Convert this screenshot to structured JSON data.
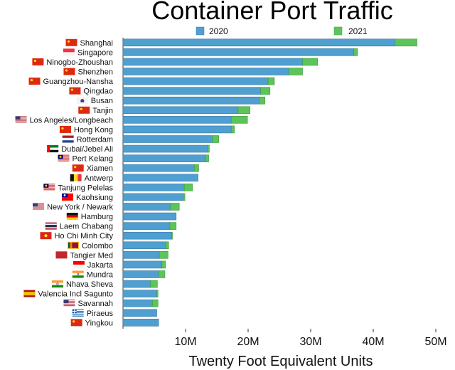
{
  "chart_data": {
    "type": "bar",
    "orientation": "horizontal",
    "stacked": true,
    "title": "Container Port Traffic",
    "xlabel": "Twenty Foot Equivalent Units",
    "ylabel": "",
    "xlim": [
      0,
      50000000
    ],
    "xticks": [
      10000000,
      20000000,
      30000000,
      40000000,
      50000000
    ],
    "xtick_labels": [
      "10M",
      "20M",
      "30M",
      "40M",
      "50M"
    ],
    "grid": false,
    "legend_position": "top",
    "categories": [
      "Shanghai",
      "Singapore",
      "Ninogbo-Zhoushan",
      "Shenzhen",
      "Guangzhou-Nansha",
      "Qingdao",
      "Busan",
      "Tanjin",
      "Los Angeles/Longbeach",
      "Hong Kong",
      "Rotterdam",
      "Dubai/Jebel Ali",
      "Pert Kelang",
      "Xiamen",
      "Antwerp",
      "Tanjung Pelelas",
      "Kaohsiung",
      "New York / Newark",
      "Hamburg",
      "Laem Chabang",
      "Ho Chi Minh City",
      "Colombo",
      "Tangier Med",
      "Jakarta",
      "Mundra",
      "Nhava Sheva",
      "Valencia Incl Sagunto",
      "Savannah",
      "Piraeus",
      "Yingkou"
    ],
    "series": [
      {
        "name": "2020",
        "color": "#4f9fd0",
        "values": [
          43500000,
          36900000,
          28700000,
          26500000,
          23200000,
          22000000,
          21800000,
          18400000,
          17300000,
          17300000,
          14300000,
          13500000,
          13200000,
          11400000,
          12000000,
          9800000,
          9600000,
          7600000,
          8500000,
          7500000,
          7800000,
          6800000,
          5800000,
          6200000,
          5700000,
          4400000,
          5400000,
          4700000,
          5400000,
          5700000
        ]
      },
      {
        "name": "2021",
        "color": "#5dc45a",
        "values": [
          3500000,
          600000,
          2400000,
          2200000,
          1000000,
          1500000,
          900000,
          1900000,
          2600000,
          500000,
          1000000,
          300000,
          500000,
          700000,
          0,
          1300000,
          300000,
          1400000,
          0,
          1000000,
          100000,
          500000,
          1400000,
          600000,
          1000000,
          1100000,
          200000,
          900000,
          0,
          0
        ]
      }
    ],
    "category_flags": [
      "cn",
      "sg",
      "cn",
      "cn",
      "cn",
      "cn",
      "kr",
      "cn",
      "us",
      "cn",
      "nl",
      "ae",
      "my",
      "cn",
      "be",
      "my",
      "tw",
      "us",
      "de",
      "th",
      "vn",
      "lk",
      "ma",
      "id",
      "in",
      "in",
      "es",
      "us",
      "gr",
      "cn"
    ]
  }
}
